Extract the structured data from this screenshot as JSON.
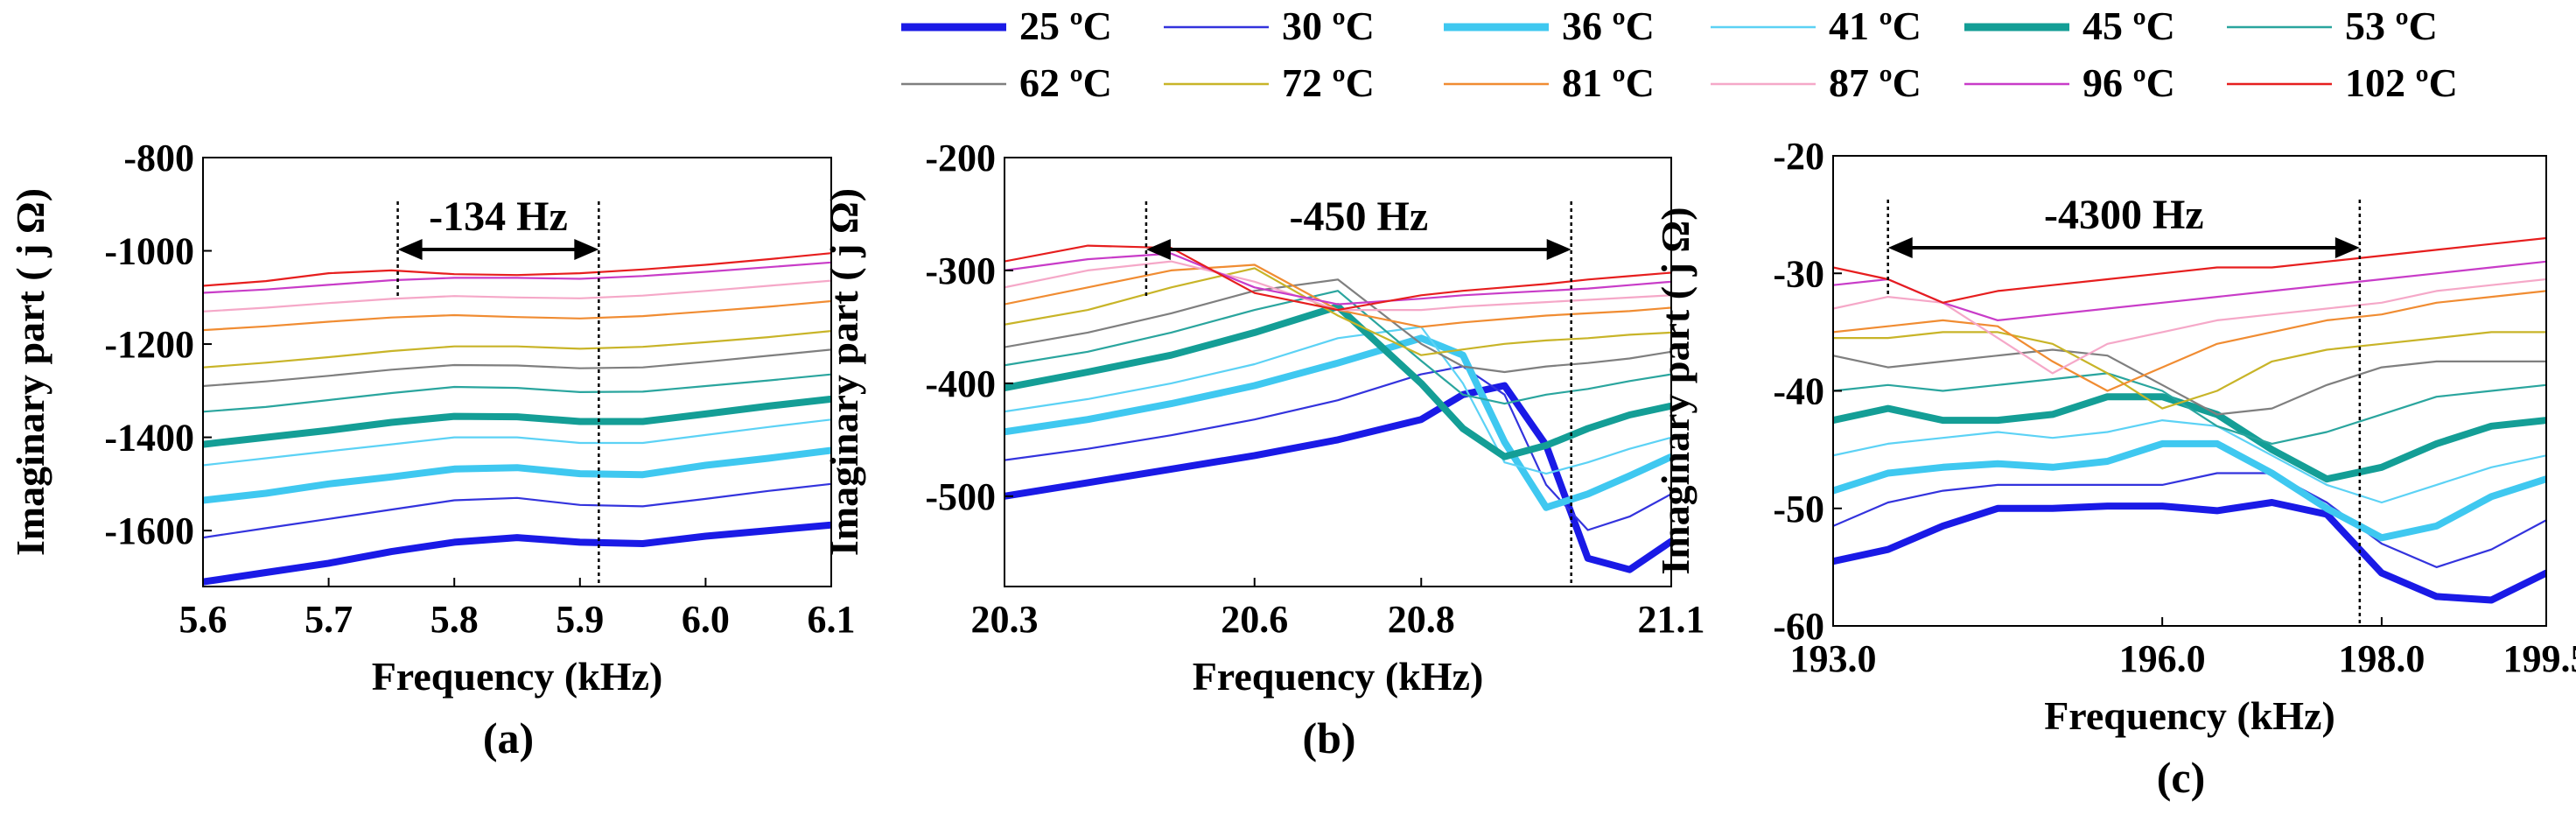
{
  "legend": [
    {
      "label": "25 ºC",
      "color": "#1a1ae6",
      "width": "thick"
    },
    {
      "label": "30 ºC",
      "color": "#3333dd",
      "width": "thin"
    },
    {
      "label": "36 ºC",
      "color": "#3fc8f0",
      "width": "thick"
    },
    {
      "label": "41 ºC",
      "color": "#5cd2f5",
      "width": "thin"
    },
    {
      "label": "45 ºC",
      "color": "#149e96",
      "width": "thick"
    },
    {
      "label": "53 ºC",
      "color": "#2aa59e",
      "width": "thin"
    },
    {
      "label": "62 ºC",
      "color": "#7f7f7f",
      "width": "thin"
    },
    {
      "label": "72 ºC",
      "color": "#c8b428",
      "width": "thin"
    },
    {
      "label": "81 ºC",
      "color": "#f08c32",
      "width": "thin"
    },
    {
      "label": "87 ºC",
      "color": "#f5a8c8",
      "width": "thin"
    },
    {
      "label": "96 ºC",
      "color": "#c83cc8",
      "width": "thin"
    },
    {
      "label": "102 ºC",
      "color": "#e61e1e",
      "width": "thin"
    }
  ],
  "chart_data": [
    {
      "id": "a",
      "type": "line",
      "panel_label": "(a)",
      "xlabel": "Frequency (kHz)",
      "ylabel": "Imaginary part ( j Ω)",
      "xlim": [
        5.6,
        6.1
      ],
      "ylim": [
        -1720,
        -800
      ],
      "xticks": [
        5.6,
        5.7,
        5.8,
        5.9,
        6.0,
        6.1
      ],
      "xtick_labels": [
        "5.6",
        "5.7",
        "5.8",
        "5.9",
        "6.0",
        "6.1"
      ],
      "yticks": [
        -1600,
        -1400,
        -1200,
        -1000,
        -800
      ],
      "ytick_labels": [
        "-1600",
        "-1400",
        "-1200",
        "-1000",
        "-800"
      ],
      "annotation": {
        "text": "-134 Hz",
        "x_start": 5.755,
        "x_end": 5.915
      },
      "x": [
        5.6,
        5.65,
        5.7,
        5.75,
        5.8,
        5.85,
        5.9,
        5.95,
        6.0,
        6.05,
        6.1
      ],
      "series": [
        {
          "name": "25 ºC",
          "values": [
            -1710,
            -1690,
            -1670,
            -1645,
            -1625,
            -1615,
            -1625,
            -1628,
            -1612,
            -1600,
            -1588
          ]
        },
        {
          "name": "30 ºC",
          "values": [
            -1615,
            -1595,
            -1575,
            -1555,
            -1535,
            -1530,
            -1545,
            -1548,
            -1532,
            -1515,
            -1500
          ]
        },
        {
          "name": "36 ºC",
          "values": [
            -1535,
            -1520,
            -1500,
            -1485,
            -1468,
            -1465,
            -1478,
            -1480,
            -1460,
            -1445,
            -1428
          ]
        },
        {
          "name": "41 ºC",
          "values": [
            -1460,
            -1445,
            -1430,
            -1415,
            -1400,
            -1400,
            -1412,
            -1412,
            -1395,
            -1378,
            -1362
          ]
        },
        {
          "name": "45 ºC",
          "values": [
            -1415,
            -1400,
            -1385,
            -1368,
            -1355,
            -1356,
            -1366,
            -1366,
            -1350,
            -1333,
            -1318
          ]
        },
        {
          "name": "53 ºC",
          "values": [
            -1345,
            -1335,
            -1320,
            -1305,
            -1292,
            -1294,
            -1303,
            -1302,
            -1290,
            -1278,
            -1265
          ]
        },
        {
          "name": "62 ºC",
          "values": [
            -1290,
            -1280,
            -1268,
            -1255,
            -1245,
            -1246,
            -1252,
            -1250,
            -1238,
            -1225,
            -1212
          ]
        },
        {
          "name": "72 ºC",
          "values": [
            -1250,
            -1240,
            -1228,
            -1215,
            -1205,
            -1205,
            -1210,
            -1206,
            -1196,
            -1185,
            -1172
          ]
        },
        {
          "name": "81 ºC",
          "values": [
            -1170,
            -1162,
            -1152,
            -1143,
            -1138,
            -1142,
            -1145,
            -1140,
            -1130,
            -1120,
            -1108
          ]
        },
        {
          "name": "87 ºC",
          "values": [
            -1130,
            -1122,
            -1112,
            -1103,
            -1097,
            -1100,
            -1102,
            -1096,
            -1086,
            -1075,
            -1064
          ]
        },
        {
          "name": "96 ºC",
          "values": [
            -1090,
            -1083,
            -1073,
            -1063,
            -1058,
            -1058,
            -1060,
            -1054,
            -1045,
            -1035,
            -1025
          ]
        },
        {
          "name": "102 ºC",
          "values": [
            -1075,
            -1065,
            -1048,
            -1042,
            -1050,
            -1052,
            -1048,
            -1040,
            -1030,
            -1018,
            -1005
          ]
        }
      ]
    },
    {
      "id": "b",
      "type": "line",
      "panel_label": "(b)",
      "xlabel": "Frequency (kHz)",
      "ylabel": "Imaginary part ( j Ω)",
      "xlim": [
        20.3,
        21.1
      ],
      "ylim": [
        -580,
        -200
      ],
      "xticks": [
        20.3,
        20.6,
        20.8,
        21.1
      ],
      "xtick_labels": [
        "20.3",
        "20.6",
        "20.8",
        "21.1"
      ],
      "yticks": [
        -500,
        -400,
        -300,
        -200
      ],
      "ytick_labels": [
        "-500",
        "-400",
        "-300",
        "-200"
      ],
      "annotation": {
        "text": "-450 Hz",
        "x_start": 20.47,
        "x_end": 20.98
      },
      "x": [
        20.3,
        20.4,
        20.5,
        20.6,
        20.7,
        20.8,
        20.85,
        20.9,
        20.95,
        21.0,
        21.05,
        21.1
      ],
      "series": [
        {
          "name": "25 ºC",
          "values": [
            -500,
            -488,
            -476,
            -464,
            -450,
            -432,
            -410,
            -402,
            -455,
            -555,
            -565,
            -540
          ]
        },
        {
          "name": "30 ºC",
          "values": [
            -468,
            -458,
            -446,
            -432,
            -415,
            -392,
            -385,
            -410,
            -490,
            -530,
            -518,
            -498
          ]
        },
        {
          "name": "36 ºC",
          "values": [
            -443,
            -432,
            -418,
            -402,
            -382,
            -360,
            -375,
            -452,
            -510,
            -498,
            -482,
            -465
          ]
        },
        {
          "name": "41 ºC",
          "values": [
            -425,
            -414,
            -400,
            -383,
            -360,
            -350,
            -400,
            -470,
            -480,
            -470,
            -458,
            -448
          ]
        },
        {
          "name": "45 ºC",
          "values": [
            -404,
            -390,
            -375,
            -355,
            -332,
            -400,
            -440,
            -465,
            -455,
            -440,
            -428,
            -420
          ]
        },
        {
          "name": "53 ºC",
          "values": [
            -384,
            -372,
            -355,
            -335,
            -318,
            -380,
            -410,
            -418,
            -410,
            -405,
            -398,
            -392
          ]
        },
        {
          "name": "62 ºC",
          "values": [
            -368,
            -355,
            -338,
            -318,
            -308,
            -365,
            -385,
            -390,
            -385,
            -382,
            -378,
            -372
          ]
        },
        {
          "name": "72 ºC",
          "values": [
            -348,
            -335,
            -315,
            -298,
            -340,
            -375,
            -370,
            -365,
            -362,
            -360,
            -357,
            -355
          ]
        },
        {
          "name": "81 ºC",
          "values": [
            -330,
            -315,
            -300,
            -295,
            -335,
            -350,
            -346,
            -343,
            -340,
            -338,
            -336,
            -333
          ]
        },
        {
          "name": "87 ºC",
          "values": [
            -315,
            -300,
            -292,
            -310,
            -335,
            -335,
            -332,
            -330,
            -328,
            -326,
            -324,
            -322
          ]
        },
        {
          "name": "96 ºC",
          "values": [
            -300,
            -290,
            -285,
            -315,
            -330,
            -325,
            -322,
            -320,
            -318,
            -316,
            -313,
            -310
          ]
        },
        {
          "name": "102 ºC",
          "values": [
            -292,
            -278,
            -280,
            -320,
            -335,
            -322,
            -318,
            -315,
            -312,
            -308,
            -305,
            -302
          ]
        }
      ]
    },
    {
      "id": "c",
      "type": "line",
      "panel_label": "(c)",
      "xlabel": "Frequency (kHz)",
      "ylabel": "Imaginary part ( j Ω)",
      "xlim": [
        193.0,
        199.5
      ],
      "ylim": [
        -60,
        -20
      ],
      "xticks": [
        193.0,
        196.0,
        198.0,
        199.5
      ],
      "xtick_labels": [
        "193.0",
        "196.0",
        "198.0",
        "199.5"
      ],
      "yticks": [
        -60,
        -50,
        -40,
        -30,
        -20
      ],
      "ytick_labels": [
        "-60",
        "-50",
        "-40",
        "-30",
        "-20"
      ],
      "annotation": {
        "text": "-4300 Hz",
        "x_start": 193.5,
        "x_end": 197.8
      },
      "x": [
        193.0,
        193.5,
        194.0,
        194.5,
        195.0,
        195.5,
        196.0,
        196.5,
        197.0,
        197.5,
        198.0,
        198.5,
        199.0,
        199.5
      ],
      "series": [
        {
          "name": "25 ºC",
          "values": [
            -54.5,
            -53.5,
            -51.5,
            -50.0,
            -50.0,
            -49.8,
            -49.8,
            -50.2,
            -49.5,
            -50.5,
            -55.5,
            -57.5,
            -57.8,
            -55.5
          ]
        },
        {
          "name": "30 ºC",
          "values": [
            -51.5,
            -49.5,
            -48.5,
            -48.0,
            -48.0,
            -48.0,
            -48.0,
            -47.0,
            -47.0,
            -49.5,
            -53.0,
            -55.0,
            -53.5,
            -51.0
          ]
        },
        {
          "name": "36 ºC",
          "values": [
            -48.5,
            -47.0,
            -46.5,
            -46.2,
            -46.5,
            -46.0,
            -44.5,
            -44.5,
            -47.0,
            -50.0,
            -52.5,
            -51.5,
            -49.0,
            -47.5
          ]
        },
        {
          "name": "41 ºC",
          "values": [
            -45.5,
            -44.5,
            -44.0,
            -43.5,
            -44.0,
            -43.5,
            -42.5,
            -43.0,
            -45.5,
            -48.0,
            -49.5,
            -48.0,
            -46.5,
            -45.5
          ]
        },
        {
          "name": "45 ºC",
          "values": [
            -42.5,
            -41.5,
            -42.5,
            -42.5,
            -42.0,
            -40.5,
            -40.5,
            -42.0,
            -45.0,
            -47.5,
            -46.5,
            -44.5,
            -43.0,
            -42.5
          ]
        },
        {
          "name": "53 ºC",
          "values": [
            -40.0,
            -39.5,
            -40.0,
            -39.5,
            -39.0,
            -38.5,
            -40.0,
            -43.0,
            -44.5,
            -43.5,
            -42.0,
            -40.5,
            -40.0,
            -39.5
          ]
        },
        {
          "name": "62 ºC",
          "values": [
            -37.0,
            -38.0,
            -37.5,
            -37.0,
            -36.5,
            -37.0,
            -39.5,
            -42.0,
            -41.5,
            -39.5,
            -38.0,
            -37.5,
            -37.5,
            -37.5
          ]
        },
        {
          "name": "72 ºC",
          "values": [
            -35.5,
            -35.5,
            -35.0,
            -35.0,
            -36.0,
            -38.5,
            -41.5,
            -40.0,
            -37.5,
            -36.5,
            -36.0,
            -35.5,
            -35.0,
            -35.0
          ]
        },
        {
          "name": "81 ºC",
          "values": [
            -35.0,
            -34.5,
            -34.0,
            -34.5,
            -37.5,
            -40.0,
            -38.0,
            -36.0,
            -35.0,
            -34.0,
            -33.5,
            -32.5,
            -32.0,
            -31.5
          ]
        },
        {
          "name": "87 ºC",
          "values": [
            -33.0,
            -32.0,
            -32.5,
            -35.5,
            -38.5,
            -36.0,
            -35.0,
            -34.0,
            -33.5,
            -33.0,
            -32.5,
            -31.5,
            -31.0,
            -30.5
          ]
        },
        {
          "name": "96 ºC",
          "values": [
            -31.0,
            -30.5,
            -32.5,
            -34.0,
            -33.5,
            -33.0,
            -32.5,
            -32.0,
            -31.5,
            -31.0,
            -30.5,
            -30.0,
            -29.5,
            -29.0
          ]
        },
        {
          "name": "102 ºC",
          "values": [
            -29.5,
            -30.5,
            -32.5,
            -31.5,
            -31.0,
            -30.5,
            -30.0,
            -29.5,
            -29.5,
            -29.0,
            -28.5,
            -28.0,
            -27.5,
            -27.0
          ]
        }
      ]
    }
  ]
}
